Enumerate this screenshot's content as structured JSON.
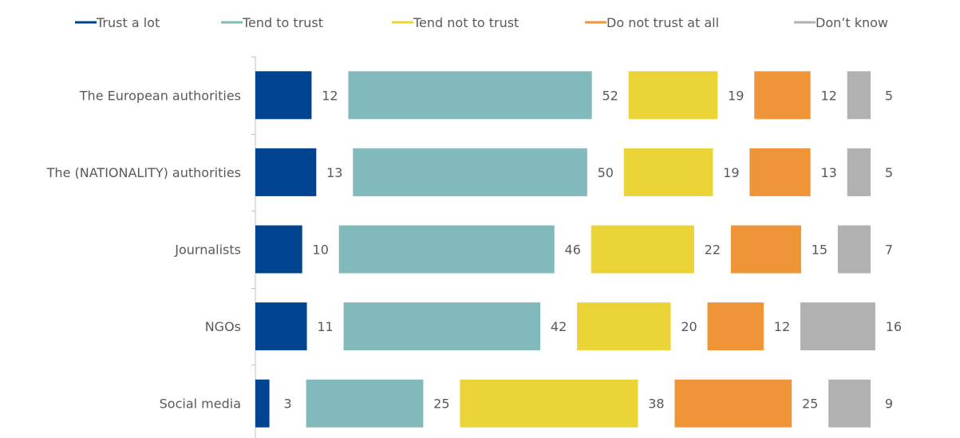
{
  "chart_data": {
    "type": "bar",
    "orientation": "horizontal",
    "stacked": true,
    "value_labels": true,
    "legend_position": "top",
    "grid": false,
    "categories": [
      "The European authorities",
      "The (NATIONALITY) authorities",
      "Journalists",
      "NGOs",
      "Social media"
    ],
    "series": [
      {
        "name": "Trust a lot",
        "color": "#00448F",
        "values": [
          12,
          13,
          10,
          11,
          3
        ]
      },
      {
        "name": "Tend to trust",
        "color": "#82B9BA",
        "values": [
          52,
          50,
          46,
          42,
          25
        ]
      },
      {
        "name": "Tend not to trust",
        "color": "#EBD437",
        "values": [
          19,
          19,
          22,
          20,
          38
        ]
      },
      {
        "name": "Do not trust at all",
        "color": "#F09537",
        "values": [
          12,
          13,
          15,
          12,
          25
        ]
      },
      {
        "name": "Don’t know",
        "color": "#B1B1B1",
        "values": [
          5,
          5,
          7,
          16,
          9
        ]
      }
    ]
  }
}
